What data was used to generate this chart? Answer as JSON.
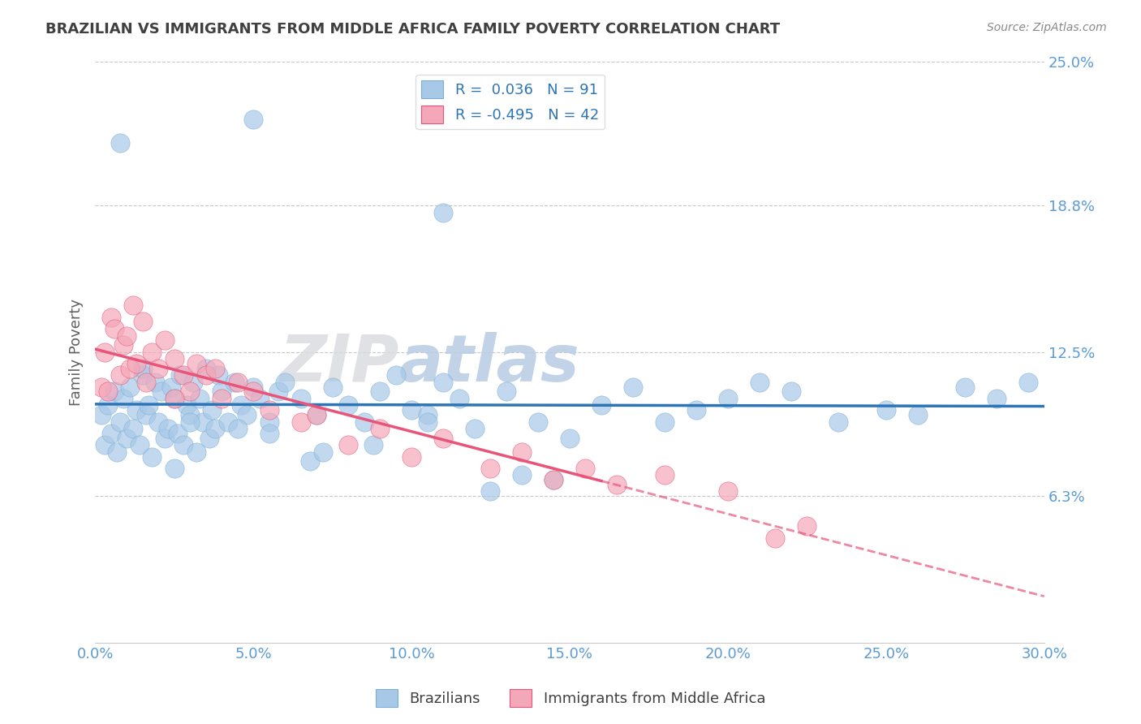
{
  "title": "BRAZILIAN VS IMMIGRANTS FROM MIDDLE AFRICA FAMILY POVERTY CORRELATION CHART",
  "source": "Source: ZipAtlas.com",
  "ylabel": "Family Poverty",
  "xlim": [
    0.0,
    30.0
  ],
  "ylim": [
    0.0,
    25.0
  ],
  "yticks": [
    0.0,
    6.3,
    12.5,
    18.8,
    25.0
  ],
  "ytick_labels": [
    "",
    "6.3%",
    "12.5%",
    "18.8%",
    "25.0%"
  ],
  "xticks": [
    0.0,
    5.0,
    10.0,
    15.0,
    20.0,
    25.0,
    30.0
  ],
  "xtick_labels": [
    "0.0%",
    "5.0%",
    "10.0%",
    "15.0%",
    "20.0%",
    "25.0%",
    "30.0%"
  ],
  "brazilians": {
    "name": "Brazilians",
    "R": 0.036,
    "N": 91,
    "marker_facecolor": "#A8C8E8",
    "marker_edgecolor": "#7AAFD4",
    "trend_color": "#2E75B6",
    "x": [
      0.2,
      0.3,
      0.4,
      0.5,
      0.6,
      0.7,
      0.8,
      0.9,
      1.0,
      1.1,
      1.2,
      1.3,
      1.4,
      1.5,
      1.6,
      1.7,
      1.8,
      1.9,
      2.0,
      2.1,
      2.2,
      2.3,
      2.4,
      2.5,
      2.6,
      2.7,
      2.8,
      2.9,
      3.0,
      3.1,
      3.2,
      3.3,
      3.4,
      3.5,
      3.6,
      3.7,
      3.8,
      3.9,
      4.0,
      4.2,
      4.4,
      4.6,
      4.8,
      5.0,
      5.2,
      5.5,
      5.8,
      6.0,
      6.5,
      7.0,
      7.5,
      8.0,
      8.5,
      9.0,
      9.5,
      10.0,
      10.5,
      11.0,
      11.5,
      12.0,
      13.0,
      14.0,
      15.0,
      16.0,
      17.0,
      18.0,
      19.0,
      20.0,
      21.0,
      22.0,
      23.5,
      25.0,
      26.0,
      27.5,
      28.5,
      29.5,
      3.0,
      2.5,
      1.5,
      0.8,
      4.5,
      5.5,
      6.8,
      7.2,
      8.8,
      10.5,
      12.5,
      13.5,
      14.5,
      5.0,
      11.0
    ],
    "y": [
      9.8,
      8.5,
      10.2,
      9.0,
      10.8,
      8.2,
      9.5,
      10.5,
      8.8,
      11.0,
      9.2,
      10.0,
      8.5,
      11.5,
      9.8,
      10.2,
      8.0,
      11.2,
      9.5,
      10.8,
      8.8,
      9.2,
      11.0,
      10.5,
      9.0,
      11.5,
      8.5,
      10.2,
      9.8,
      11.2,
      8.2,
      10.5,
      9.5,
      11.8,
      8.8,
      10.0,
      9.2,
      11.5,
      10.8,
      9.5,
      11.2,
      10.2,
      9.8,
      11.0,
      10.5,
      9.5,
      10.8,
      11.2,
      10.5,
      9.8,
      11.0,
      10.2,
      9.5,
      10.8,
      11.5,
      10.0,
      9.8,
      11.2,
      10.5,
      9.2,
      10.8,
      9.5,
      8.8,
      10.2,
      11.0,
      9.5,
      10.0,
      10.5,
      11.2,
      10.8,
      9.5,
      10.0,
      9.8,
      11.0,
      10.5,
      11.2,
      9.5,
      7.5,
      11.8,
      21.5,
      9.2,
      9.0,
      7.8,
      8.2,
      8.5,
      9.5,
      6.5,
      7.2,
      7.0,
      22.5,
      18.5
    ]
  },
  "immigrants": {
    "name": "Immigrants from Middle Africa",
    "R": -0.495,
    "N": 42,
    "marker_facecolor": "#F4A7B9",
    "marker_edgecolor": "#E8547A",
    "trend_color": "#E8547A",
    "x": [
      0.2,
      0.3,
      0.4,
      0.5,
      0.6,
      0.8,
      0.9,
      1.0,
      1.1,
      1.2,
      1.3,
      1.5,
      1.6,
      1.8,
      2.0,
      2.2,
      2.5,
      2.8,
      3.0,
      3.2,
      3.5,
      4.0,
      4.5,
      5.0,
      5.5,
      6.5,
      7.0,
      8.0,
      9.0,
      10.0,
      11.0,
      12.5,
      13.5,
      14.5,
      15.5,
      16.5,
      18.0,
      20.0,
      21.5,
      22.5,
      2.5,
      3.8
    ],
    "y": [
      11.0,
      12.5,
      10.8,
      14.0,
      13.5,
      11.5,
      12.8,
      13.2,
      11.8,
      14.5,
      12.0,
      13.8,
      11.2,
      12.5,
      11.8,
      13.0,
      12.2,
      11.5,
      10.8,
      12.0,
      11.5,
      10.5,
      11.2,
      10.8,
      10.0,
      9.5,
      9.8,
      8.5,
      9.2,
      8.0,
      8.8,
      7.5,
      8.2,
      7.0,
      7.5,
      6.8,
      7.2,
      6.5,
      4.5,
      5.0,
      10.5,
      11.8
    ]
  },
  "background_color": "#FFFFFF",
  "tick_color": "#5B9BD5",
  "title_color": "#404040",
  "axis_label_color": "#606060"
}
